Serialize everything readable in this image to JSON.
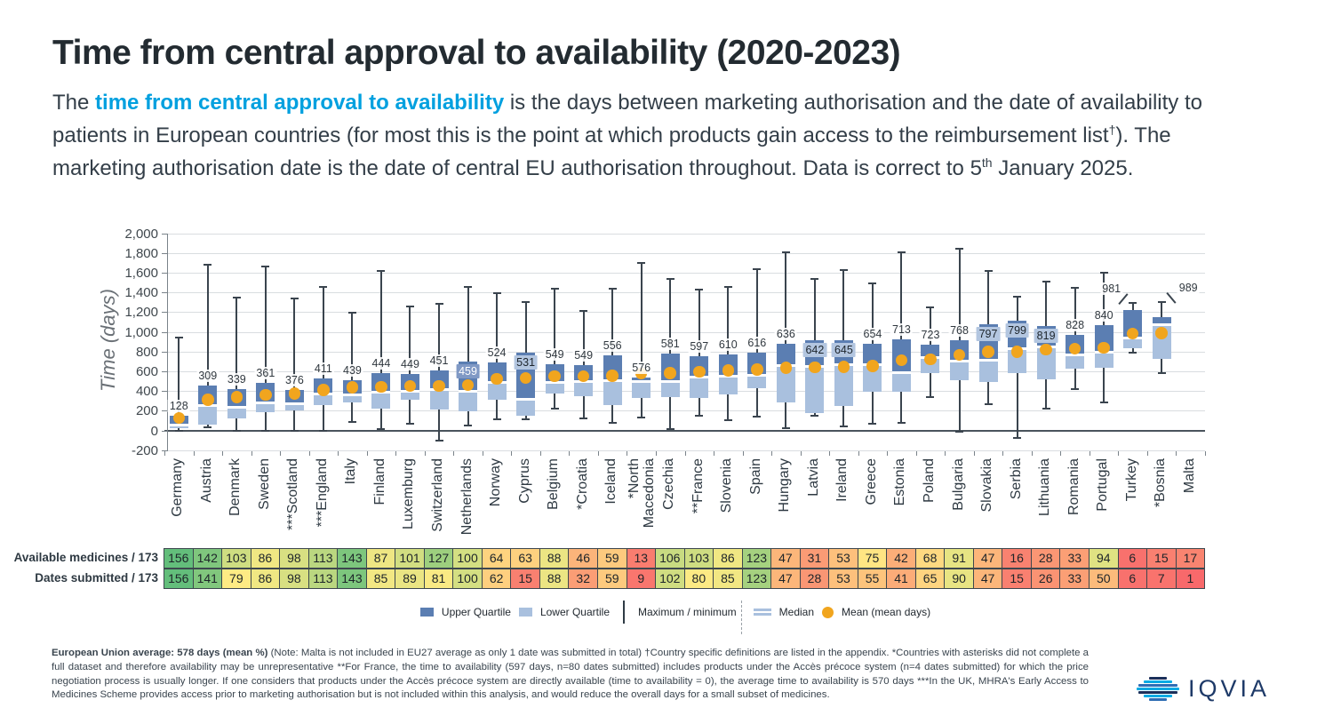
{
  "page": {
    "title": "Time from central approval to availability (2020-2023)",
    "intro": {
      "pre": "The ",
      "highlight": "time from central approval to availability",
      "mid": " is the days between marketing authorisation and the date of availability to patients in European countries (for most this is the point at which products gain access to the reimbursement list",
      "dagger": "†",
      "after_dagger": "). The marketing authorisation date is the date of central EU authorisation throughout. Data is correct to 5",
      "th": "th",
      "end": " January 2025."
    }
  },
  "colors": {
    "accent_blue": "#00A0DF",
    "box_upper": "#5B7EB2",
    "box_lower": "#A9C0DE",
    "mean_dot": "#F1A51E",
    "scale_low": "#F8696B",
    "scale_mid": "#FFEB84",
    "scale_high": "#63BE7B"
  },
  "chart_data": {
    "type": "box",
    "ylabel": "Time (days)",
    "ylim": [
      -200,
      2000
    ],
    "grid": true,
    "legend_position": "bottom",
    "yticks": [
      {
        "v": 2000,
        "label": "2,000"
      },
      {
        "v": 1800,
        "label": "1,800"
      },
      {
        "v": 1600,
        "label": "1,600"
      },
      {
        "v": 1400,
        "label": "1,400"
      },
      {
        "v": 1200,
        "label": "1,200"
      },
      {
        "v": 1000,
        "label": "1,000"
      },
      {
        "v": 800,
        "label": "800"
      },
      {
        "v": 600,
        "label": "600"
      },
      {
        "v": 400,
        "label": "400"
      },
      {
        "v": 200,
        "label": "200"
      },
      {
        "v": 0,
        "label": "0"
      },
      {
        "v": -200,
        "label": "-200"
      }
    ],
    "table_row_labels": [
      "Available medicines / 173",
      "Dates submitted / 173"
    ],
    "table_scale": {
      "min": 1,
      "mid": 78.5,
      "max": 156
    },
    "countries": [
      {
        "label": "Germany",
        "mean": 128,
        "min": 0,
        "q1": 20,
        "median": 55,
        "q3": 150,
        "max": 945,
        "available": 156,
        "submitted": 156
      },
      {
        "label": "Austria",
        "mean": 309,
        "min": 30,
        "q1": 55,
        "median": 250,
        "q3": 455,
        "max": 1685,
        "available": 142,
        "submitted": 141
      },
      {
        "label": "Denmark",
        "mean": 339,
        "min": 0,
        "q1": 125,
        "median": 235,
        "q3": 420,
        "max": 1345,
        "available": 103,
        "submitted": 79
      },
      {
        "label": "Sweden",
        "mean": 361,
        "min": 0,
        "q1": 185,
        "median": 280,
        "q3": 485,
        "max": 1660,
        "available": 86,
        "submitted": 86
      },
      {
        "label": "***Scotland",
        "mean": 376,
        "min": 0,
        "q1": 205,
        "median": 275,
        "q3": 410,
        "max": 1335,
        "available": 98,
        "submitted": 98
      },
      {
        "label": "***England",
        "mean": 411,
        "min": 0,
        "q1": 260,
        "median": 370,
        "q3": 530,
        "max": 1460,
        "available": 113,
        "submitted": 113
      },
      {
        "label": "Italy",
        "mean": 439,
        "min": 90,
        "q1": 280,
        "median": 365,
        "q3": 505,
        "max": 1195,
        "available": 143,
        "submitted": 143
      },
      {
        "label": "Finland",
        "mean": 444,
        "min": 10,
        "q1": 220,
        "median": 385,
        "q3": 580,
        "max": 1620,
        "available": 87,
        "submitted": 85
      },
      {
        "label": "Luxemburg",
        "mean": 449,
        "min": 65,
        "q1": 310,
        "median": 400,
        "q3": 570,
        "max": 1255,
        "available": 101,
        "submitted": 89
      },
      {
        "label": "Switzerland",
        "mean": 451,
        "min": -100,
        "q1": 215,
        "median": 415,
        "q3": 605,
        "max": 1285,
        "available": 127,
        "submitted": 81
      },
      {
        "label": "Netherlands",
        "mean": 459,
        "min": 50,
        "q1": 190,
        "median": 395,
        "q3": 695,
        "max": 1460,
        "available": 100,
        "submitted": 100,
        "label_style": "chip-white"
      },
      {
        "label": "Norway",
        "mean": 524,
        "min": 110,
        "q1": 310,
        "median": 490,
        "q3": 690,
        "max": 1390,
        "available": 64,
        "submitted": 62
      },
      {
        "label": "Cyprus",
        "mean": 531,
        "min": 110,
        "q1": 150,
        "median": 315,
        "q3": 790,
        "max": 1300,
        "available": 63,
        "submitted": 15,
        "label_style": "chip"
      },
      {
        "label": "Belgium",
        "mean": 549,
        "min": 225,
        "q1": 370,
        "median": 490,
        "q3": 675,
        "max": 1440,
        "available": 88,
        "submitted": 88
      },
      {
        "label": "*Croatia",
        "mean": 549,
        "min": 120,
        "q1": 345,
        "median": 500,
        "q3": 660,
        "max": 1210,
        "available": 46,
        "submitted": 32
      },
      {
        "label": "Iceland",
        "mean": 556,
        "min": 80,
        "q1": 255,
        "median": 505,
        "q3": 760,
        "max": 1440,
        "available": 59,
        "submitted": 59
      },
      {
        "label": "*North\nMacedonia",
        "mean": 576,
        "min": 135,
        "q1": 330,
        "median": 495,
        "q3": 540,
        "max": 1700,
        "available": 13,
        "submitted": 9
      },
      {
        "label": "Czechia",
        "mean": 581,
        "min": 15,
        "q1": 340,
        "median": 500,
        "q3": 780,
        "max": 1540,
        "available": 106,
        "submitted": 102
      },
      {
        "label": "**France",
        "mean": 597,
        "min": 150,
        "q1": 330,
        "median": 540,
        "q3": 750,
        "max": 1430,
        "available": 103,
        "submitted": 80
      },
      {
        "label": "Slovenia",
        "mean": 610,
        "min": 100,
        "q1": 365,
        "median": 550,
        "q3": 775,
        "max": 1460,
        "available": 86,
        "submitted": 85
      },
      {
        "label": "Spain",
        "mean": 616,
        "min": 140,
        "q1": 430,
        "median": 560,
        "q3": 790,
        "max": 1640,
        "available": 123,
        "submitted": 123
      },
      {
        "label": "Hungary",
        "mean": 636,
        "min": 20,
        "q1": 285,
        "median": 660,
        "q3": 880,
        "max": 1810,
        "available": 47,
        "submitted": 47
      },
      {
        "label": "Latvia",
        "mean": 642,
        "min": 150,
        "q1": 180,
        "median": 650,
        "q3": 915,
        "max": 1540,
        "available": 31,
        "submitted": 28,
        "label_style": "chip"
      },
      {
        "label": "Ireland",
        "mean": 645,
        "min": 45,
        "q1": 250,
        "median": 665,
        "q3": 915,
        "max": 1625,
        "available": 53,
        "submitted": 53,
        "label_style": "chip"
      },
      {
        "label": "Greece",
        "mean": 654,
        "min": 65,
        "q1": 395,
        "median": 665,
        "q3": 875,
        "max": 1490,
        "available": 75,
        "submitted": 55
      },
      {
        "label": "Estonia",
        "mean": 713,
        "min": 80,
        "q1": 390,
        "median": 590,
        "q3": 925,
        "max": 1810,
        "available": 42,
        "submitted": 41
      },
      {
        "label": "Poland",
        "mean": 723,
        "min": 335,
        "q1": 585,
        "median": 735,
        "q3": 870,
        "max": 1250,
        "available": 68,
        "submitted": 65
      },
      {
        "label": "Bulgaria",
        "mean": 768,
        "min": -10,
        "q1": 505,
        "median": 705,
        "q3": 915,
        "max": 1840,
        "available": 91,
        "submitted": 90
      },
      {
        "label": "Slovakia",
        "mean": 797,
        "min": 265,
        "q1": 495,
        "median": 715,
        "q3": 1080,
        "max": 1620,
        "available": 47,
        "submitted": 47,
        "label_style": "chip"
      },
      {
        "label": "Serbia",
        "mean": 799,
        "min": -80,
        "q1": 580,
        "median": 830,
        "q3": 1110,
        "max": 1355,
        "available": 16,
        "submitted": 15,
        "label_style": "chip"
      },
      {
        "label": "Lithuania",
        "mean": 819,
        "min": 225,
        "q1": 515,
        "median": 850,
        "q3": 1060,
        "max": 1510,
        "available": 28,
        "submitted": 26,
        "label_style": "chip"
      },
      {
        "label": "Romania",
        "mean": 828,
        "min": 415,
        "q1": 625,
        "median": 765,
        "q3": 970,
        "max": 1450,
        "available": 33,
        "submitted": 33
      },
      {
        "label": "Portugal",
        "mean": 840,
        "min": 280,
        "q1": 635,
        "median": 790,
        "q3": 1065,
        "max": 1600,
        "available": 94,
        "submitted": 50
      },
      {
        "label": "Turkey",
        "mean": 981,
        "min": 790,
        "q1": 835,
        "median": 935,
        "q3": 1220,
        "max": 1290,
        "available": 6,
        "submitted": 6,
        "label_anchor": "max-left"
      },
      {
        "label": "*Bosnia",
        "mean": 989,
        "min": 580,
        "q1": 725,
        "median": 1075,
        "q3": 1150,
        "max": 1300,
        "available": 15,
        "submitted": 7,
        "label_anchor": "max-right"
      },
      {
        "label": "Malta",
        "mean": null,
        "min": null,
        "q1": null,
        "median": null,
        "q3": null,
        "max": null,
        "available": 17,
        "submitted": 1
      }
    ]
  },
  "legend": {
    "items": [
      {
        "type": "square-dark",
        "label": "Upper Quartile"
      },
      {
        "type": "square-light",
        "label": "Lower Quartile"
      },
      {
        "type": "vline",
        "label": "Maximum / minimum",
        "divider_after": true
      },
      {
        "type": "median",
        "label": "Median"
      },
      {
        "type": "dot",
        "label": "Mean (mean days)"
      }
    ]
  },
  "footnote": {
    "bold": "European Union average: 578 days (mean %) ",
    "rest": "(Note: Malta is not included in EU27 average as only 1 date was submitted in total) †Country specific definitions are listed in the appendix. *Countries with asterisks did not complete a full dataset and therefore availability may be unrepresentative **For France, the time to availability (597 days, n=80 dates submitted) includes products under the Accès précoce system (n=4 dates submitted) for which the price negotiation process is usually longer. If one considers that products under the Accès précoce system are directly available (time to availability = 0), the average time to availability is 570 days ***In the UK, MHRA's Early Access to Medicines Scheme provides access prior to marketing authorisation but is not included within this analysis, and would reduce the overall days for a small subset of medicines."
  },
  "logo": {
    "text": "IQVIA"
  }
}
